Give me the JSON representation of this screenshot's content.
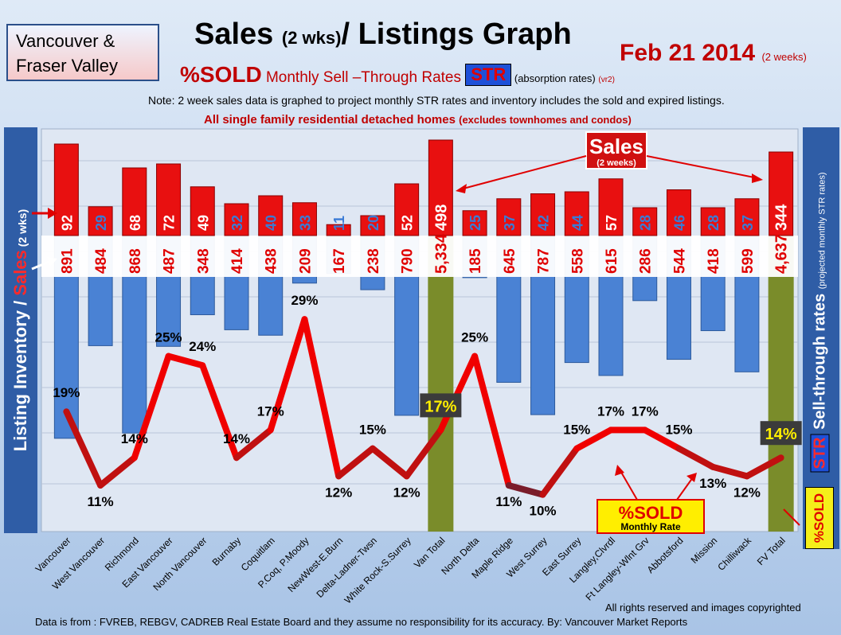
{
  "header": {
    "region_line1": "Vancouver &",
    "region_line2": "Fraser Valley",
    "title_main": "Sales ",
    "title_paren": "(2 wks)",
    "title_rest": "/ Listings Graph",
    "date_main": "Feb 21 2014",
    "date_paren": "(2 weeks)",
    "subtitle_sold": "%SOLD",
    "subtitle_mid": " Monthly Sell –Through Rates ",
    "subtitle_str": "STR",
    "subtitle_note": " (absorption rates) ",
    "subtitle_ver": "(vr2)",
    "note1": "Note: 2 week sales data is graphed to project monthly STR rates and inventory includes the sold and expired listings.",
    "note2_main": "All single family residential detached homes ",
    "note2_paren": "(excludes townhomes and condos)"
  },
  "left_axis": {
    "label_a": "Listing Inventory / ",
    "label_b": "Sales",
    "label_c": " (2 wks)"
  },
  "right_axis": {
    "str": "STR",
    "label": " Sell-through rates ",
    "small": "(projected monthly STR rates)",
    "sold_tag": "%SOLD"
  },
  "callouts": {
    "sales_title": "Sales",
    "sales_sub": "(2 weeks)",
    "sold_title": "%SOLD",
    "sold_sub": "Monthly Rate"
  },
  "footer": {
    "rights": "All rights reserved and  images copyrighted",
    "source": "Data is  from : FVREB, REBGV, CADREB Real Estate Board and they assume no responsibility  for its accuracy. By: Vancouver Market Reports"
  },
  "chart_data": {
    "type": "bar",
    "categories": [
      "Vancouver",
      "West Vancouver",
      "Richmond",
      "East Vancouver",
      "North Vancouver",
      "Burnaby",
      "Coquitlam",
      "P.Coq, P.Moody",
      "NewWest-E.Burn",
      "Delta-Ladner-Twsn",
      "White Rock-S.Surrey",
      "Van Total",
      "North Delta",
      "Maple Ridge",
      "West Surrey",
      "East Surrey",
      "Langley,Clvrdl",
      "Ft Langley-Wlnt Grv",
      "Abbotsford",
      "Mission",
      "Chilliwack",
      "FV Total"
    ],
    "listings": [
      "891",
      "484",
      "868",
      "487",
      "348",
      "414",
      "438",
      "209",
      "167",
      "238",
      "790",
      "5,334",
      "185",
      "645",
      "787",
      "558",
      "615",
      "286",
      "544",
      "418",
      "599",
      "4,637"
    ],
    "sales": [
      "92",
      "29",
      "68",
      "72",
      "49",
      "32",
      "40",
      "33",
      "11",
      "20",
      "52",
      "498",
      "25",
      "37",
      "42",
      "44",
      "57",
      "28",
      "46",
      "28",
      "37",
      "344"
    ],
    "sold_pct": [
      "19%",
      "11%",
      "14%",
      "25%",
      "24%",
      "14%",
      "17%",
      "29%",
      "12%",
      "15%",
      "12%",
      "17%",
      "25%",
      "11%",
      "10%",
      "15%",
      "17%",
      "17%",
      "15%",
      "13%",
      "12%",
      "14%"
    ],
    "totals": [
      "Van Total",
      "FV Total"
    ],
    "colors": {
      "sales": "#e81010",
      "listings": "#4a82d4",
      "totals": "#7a8c2a",
      "line": "#e00000"
    }
  }
}
